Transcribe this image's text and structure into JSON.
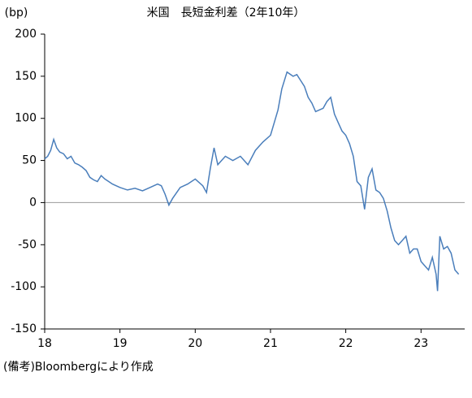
{
  "chart_data": {
    "type": "line",
    "title": "米国　長短金利差（2年10年）",
    "y_label": "(bp)",
    "note": "(備考)Bloombergにより作成",
    "xlim": [
      18,
      23.58
    ],
    "xticks": [
      18,
      19,
      20,
      21,
      22,
      23
    ],
    "ylim": [
      -150,
      200
    ],
    "yticks": [
      -150,
      -100,
      -50,
      0,
      50,
      100,
      150,
      200
    ],
    "series": [
      {
        "color": "#4a7ebb",
        "x": [
          18.0,
          18.04,
          18.08,
          18.12,
          18.16,
          18.2,
          18.25,
          18.3,
          18.35,
          18.4,
          18.45,
          18.5,
          18.55,
          18.6,
          18.65,
          18.7,
          18.75,
          18.8,
          18.85,
          18.9,
          18.95,
          19.0,
          19.1,
          19.2,
          19.3,
          19.4,
          19.5,
          19.55,
          19.6,
          19.65,
          19.7,
          19.8,
          19.9,
          20.0,
          20.1,
          20.15,
          20.2,
          20.25,
          20.3,
          20.4,
          20.5,
          20.6,
          20.7,
          20.8,
          20.9,
          21.0,
          21.05,
          21.1,
          21.15,
          21.22,
          21.3,
          21.35,
          21.4,
          21.45,
          21.5,
          21.55,
          21.6,
          21.65,
          21.7,
          21.75,
          21.8,
          21.85,
          21.9,
          21.95,
          22.0,
          22.05,
          22.1,
          22.15,
          22.2,
          22.25,
          22.3,
          22.35,
          22.4,
          22.45,
          22.5,
          22.55,
          22.6,
          22.65,
          22.7,
          22.75,
          22.8,
          22.85,
          22.9,
          22.95,
          23.0,
          23.05,
          23.1,
          23.15,
          23.2,
          23.22,
          23.25,
          23.3,
          23.35,
          23.4,
          23.45,
          23.5
        ],
        "values": [
          52,
          55,
          62,
          75,
          65,
          60,
          58,
          52,
          55,
          47,
          45,
          42,
          38,
          30,
          27,
          25,
          32,
          28,
          25,
          22,
          20,
          18,
          15,
          17,
          14,
          18,
          22,
          20,
          10,
          -3,
          5,
          18,
          22,
          28,
          20,
          12,
          40,
          65,
          45,
          55,
          50,
          55,
          45,
          62,
          72,
          80,
          95,
          110,
          135,
          155,
          150,
          152,
          145,
          138,
          125,
          118,
          108,
          110,
          112,
          120,
          125,
          105,
          95,
          85,
          80,
          70,
          55,
          25,
          20,
          -8,
          30,
          40,
          15,
          12,
          5,
          -10,
          -30,
          -45,
          -50,
          -45,
          -40,
          -60,
          -55,
          -55,
          -70,
          -75,
          -80,
          -65,
          -85,
          -105,
          -40,
          -55,
          -52,
          -60,
          -80,
          -85
        ]
      }
    ]
  }
}
